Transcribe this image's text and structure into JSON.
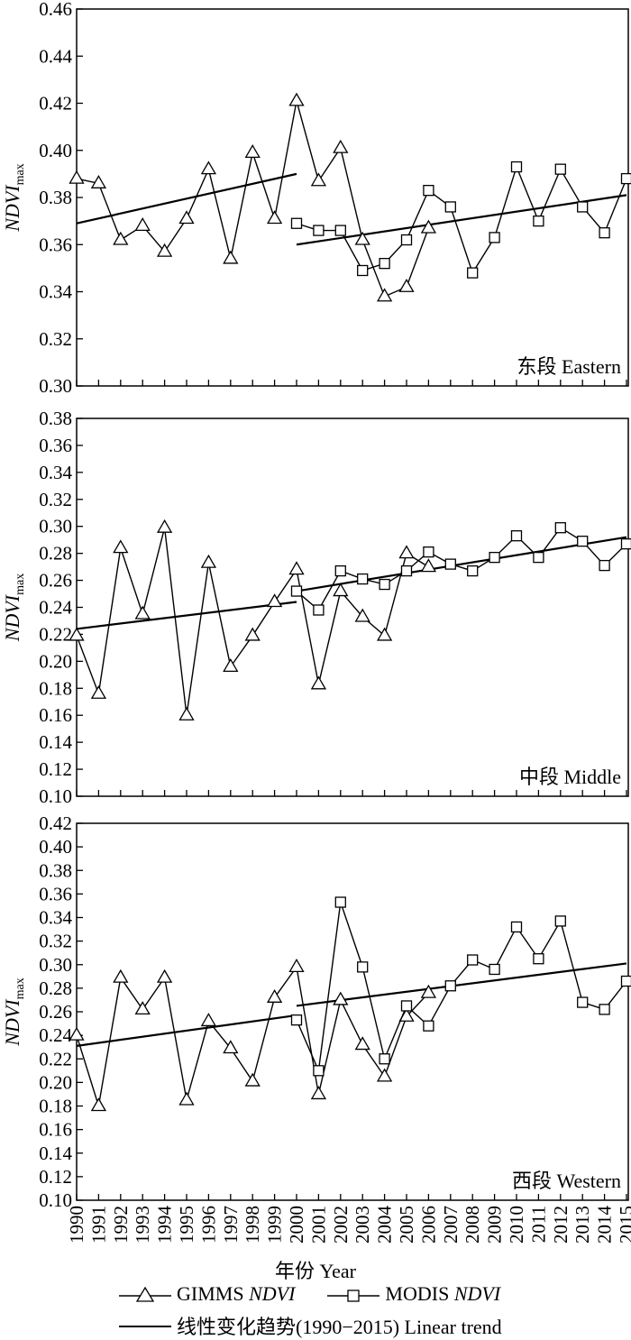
{
  "chart_data": [
    {
      "type": "line",
      "panel_label": "东段 Eastern",
      "ylabel_main": "NDVI",
      "ylabel_sub": "max",
      "ylim": [
        0.3,
        0.46
      ],
      "ystep": 0.02,
      "yticks": [
        "0.30",
        "0.32",
        "0.34",
        "0.36",
        "0.38",
        "0.40",
        "0.42",
        "0.44",
        "0.46"
      ],
      "xlim": [
        1990,
        2015
      ],
      "series": [
        {
          "name": "GIMMS NDVI",
          "marker": "triangle",
          "x": [
            1990,
            1991,
            1992,
            1993,
            1994,
            1995,
            1996,
            1997,
            1998,
            1999,
            2000,
            2001,
            2002,
            2003,
            2004,
            2005,
            2006
          ],
          "y": [
            0.388,
            0.386,
            0.362,
            0.368,
            0.357,
            0.371,
            0.392,
            0.354,
            0.399,
            0.371,
            0.421,
            0.387,
            0.401,
            0.362,
            0.338,
            0.342,
            0.367
          ]
        },
        {
          "name": "MODIS NDVI",
          "marker": "square",
          "x": [
            2000,
            2001,
            2002,
            2003,
            2004,
            2005,
            2006,
            2007,
            2008,
            2009,
            2010,
            2011,
            2012,
            2013,
            2014,
            2015
          ],
          "y": [
            0.369,
            0.366,
            0.366,
            0.349,
            0.352,
            0.362,
            0.383,
            0.376,
            0.348,
            0.363,
            0.393,
            0.37,
            0.392,
            0.376,
            0.365,
            0.388
          ]
        }
      ],
      "trends": [
        {
          "x": [
            1990,
            2000
          ],
          "y": [
            0.369,
            0.39
          ]
        },
        {
          "x": [
            2000,
            2015
          ],
          "y": [
            0.36,
            0.381
          ]
        }
      ]
    },
    {
      "type": "line",
      "panel_label": "中段 Middle",
      "ylabel_main": "NDVI",
      "ylabel_sub": "max",
      "ylim": [
        0.1,
        0.38
      ],
      "ystep": 0.02,
      "yticks": [
        "0.10",
        "0.12",
        "0.14",
        "0.16",
        "0.18",
        "0.20",
        "0.22",
        "0.24",
        "0.26",
        "0.28",
        "0.30",
        "0.32",
        "0.34",
        "0.36",
        "0.38"
      ],
      "xlim": [
        1990,
        2015
      ],
      "series": [
        {
          "name": "GIMMS NDVI",
          "marker": "triangle",
          "x": [
            1990,
            1991,
            1992,
            1993,
            1994,
            1995,
            1996,
            1997,
            1998,
            1999,
            2000,
            2001,
            2002,
            2003,
            2004,
            2005,
            2006
          ],
          "y": [
            0.219,
            0.176,
            0.284,
            0.235,
            0.299,
            0.16,
            0.273,
            0.196,
            0.219,
            0.244,
            0.268,
            0.183,
            0.252,
            0.233,
            0.219,
            0.28,
            0.27
          ]
        },
        {
          "name": "MODIS NDVI",
          "marker": "square",
          "x": [
            2000,
            2001,
            2002,
            2003,
            2004,
            2005,
            2006,
            2007,
            2008,
            2009,
            2010,
            2011,
            2012,
            2013,
            2014,
            2015
          ],
          "y": [
            0.252,
            0.238,
            0.267,
            0.261,
            0.257,
            0.267,
            0.281,
            0.272,
            0.267,
            0.277,
            0.293,
            0.277,
            0.299,
            0.289,
            0.271,
            0.287
          ]
        }
      ],
      "trends": [
        {
          "x": [
            1990,
            2000
          ],
          "y": [
            0.224,
            0.244
          ]
        },
        {
          "x": [
            2000,
            2015
          ],
          "y": [
            0.252,
            0.292
          ]
        }
      ]
    },
    {
      "type": "line",
      "panel_label": "西段 Western",
      "ylabel_main": "NDVI",
      "ylabel_sub": "max",
      "ylim": [
        0.1,
        0.42
      ],
      "ystep": 0.02,
      "yticks": [
        "0.10",
        "0.12",
        "0.14",
        "0.16",
        "0.18",
        "0.20",
        "0.22",
        "0.24",
        "0.26",
        "0.28",
        "0.30",
        "0.32",
        "0.34",
        "0.36",
        "0.38",
        "0.40",
        "0.42"
      ],
      "xlim": [
        1990,
        2015
      ],
      "xticks": [
        "1990",
        "1991",
        "1992",
        "1993",
        "1994",
        "1995",
        "1996",
        "1997",
        "1998",
        "1999",
        "2000",
        "2001",
        "2002",
        "2003",
        "2004",
        "2005",
        "2006",
        "2007",
        "2008",
        "2009",
        "2010",
        "2011",
        "2012",
        "2013",
        "2014",
        "2015"
      ],
      "xlabel": "年份 Year",
      "series": [
        {
          "name": "GIMMS NDVI",
          "marker": "triangle",
          "x": [
            1990,
            1991,
            1992,
            1993,
            1994,
            1995,
            1996,
            1997,
            1998,
            1999,
            2000,
            2001,
            2002,
            2003,
            2004,
            2005,
            2006
          ],
          "y": [
            0.24,
            0.18,
            0.289,
            0.262,
            0.289,
            0.185,
            0.252,
            0.229,
            0.201,
            0.272,
            0.298,
            0.19,
            0.27,
            0.232,
            0.205,
            0.256,
            0.276
          ]
        },
        {
          "name": "MODIS NDVI",
          "marker": "square",
          "x": [
            2000,
            2001,
            2002,
            2003,
            2004,
            2005,
            2006,
            2007,
            2008,
            2009,
            2010,
            2011,
            2012,
            2013,
            2014,
            2015
          ],
          "y": [
            0.253,
            0.21,
            0.353,
            0.298,
            0.22,
            0.265,
            0.248,
            0.282,
            0.304,
            0.296,
            0.332,
            0.305,
            0.337,
            0.268,
            0.262,
            0.286
          ]
        }
      ],
      "trends": [
        {
          "x": [
            1990,
            2000
          ],
          "y": [
            0.231,
            0.257
          ]
        },
        {
          "x": [
            2000,
            2015
          ],
          "y": [
            0.265,
            0.301
          ]
        }
      ]
    }
  ],
  "legend": {
    "gimms_prefix": "GIMMS ",
    "gimms_ital": "NDVI",
    "modis_prefix": "MODIS ",
    "modis_ital": "NDVI",
    "trend_label": "线性变化趋势(1990−2015) Linear trend"
  }
}
